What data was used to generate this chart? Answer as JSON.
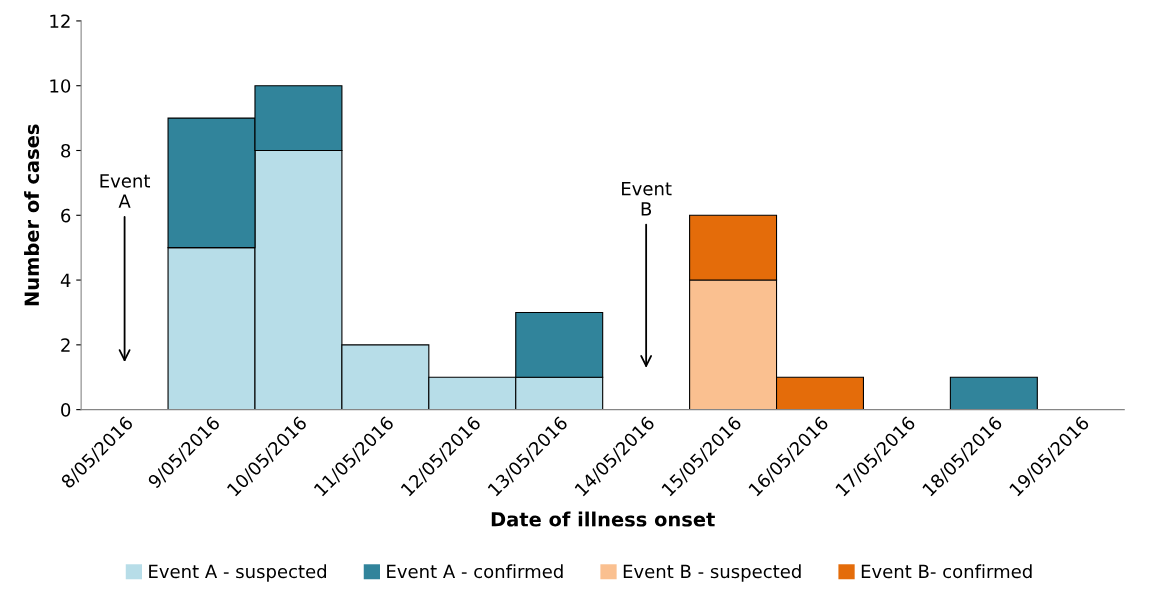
{
  "chart_data": {
    "type": "bar",
    "stacked": true,
    "xlabel": "Date of illness onset",
    "ylabel": "Number of cases",
    "categories": [
      "8/05/2016",
      "9/05/2016",
      "10/05/2016",
      "11/05/2016",
      "12/05/2016",
      "13/05/2016",
      "14/05/2016",
      "15/05/2016",
      "16/05/2016",
      "17/05/2016",
      "18/05/2016",
      "19/05/2016"
    ],
    "series": [
      {
        "name": "Event A - suspected",
        "color": "#b7dde8",
        "values": [
          null,
          5,
          8,
          2,
          1,
          1,
          null,
          null,
          null,
          null,
          null,
          null
        ]
      },
      {
        "name": "Event A - confirmed",
        "color": "#31849b",
        "values": [
          null,
          4,
          2,
          null,
          null,
          2,
          null,
          null,
          null,
          null,
          1,
          null
        ]
      },
      {
        "name": "Event B - suspected",
        "color": "#fac090",
        "values": [
          null,
          null,
          null,
          null,
          null,
          null,
          null,
          4,
          null,
          null,
          null,
          null
        ]
      },
      {
        "name": "Event B- confirmed",
        "color": "#e46c0a",
        "values": [
          null,
          null,
          null,
          null,
          null,
          null,
          null,
          2,
          1,
          null,
          null,
          null
        ]
      }
    ],
    "ylim": [
      0,
      12
    ],
    "yticks": [
      0,
      2,
      4,
      6,
      8,
      10,
      12
    ],
    "grid": false,
    "legend": "bottom",
    "annotations": [
      "Event\nA",
      "Event\nB"
    ]
  }
}
